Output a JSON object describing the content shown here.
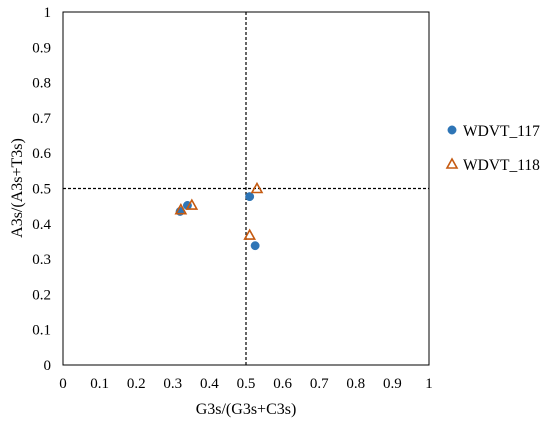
{
  "chart_data": {
    "type": "scatter",
    "title": "",
    "xlabel": "G3s/(G3s+C3s)",
    "ylabel": "A3s/(A3s+T3s)",
    "xlim": [
      0,
      1
    ],
    "ylim": [
      0,
      1
    ],
    "xticks": [
      "0",
      "0.1",
      "0.2",
      "0.3",
      "0.4",
      "0.5",
      "0.6",
      "0.7",
      "0.8",
      "0.9",
      "1"
    ],
    "yticks": [
      "0",
      "0.1",
      "0.2",
      "0.3",
      "0.4",
      "0.5",
      "0.6",
      "0.7",
      "0.8",
      "0.9",
      "1"
    ],
    "grid": false,
    "reference_lines": [
      {
        "axis": "x",
        "value": 0.5,
        "style": "dashed"
      },
      {
        "axis": "y",
        "value": 0.5,
        "style": "dashed"
      }
    ],
    "legend_position": "right",
    "series": [
      {
        "name": "WDVT_117",
        "marker": "circle",
        "color": "#2E75B6",
        "points": [
          {
            "x": 0.32,
            "y": 0.435
          },
          {
            "x": 0.34,
            "y": 0.452
          },
          {
            "x": 0.51,
            "y": 0.477
          },
          {
            "x": 0.525,
            "y": 0.338
          }
        ]
      },
      {
        "name": "WDVT_118",
        "marker": "triangle-open",
        "color": "#C55A11",
        "points": [
          {
            "x": 0.322,
            "y": 0.44
          },
          {
            "x": 0.352,
            "y": 0.453
          },
          {
            "x": 0.51,
            "y": 0.368
          },
          {
            "x": 0.53,
            "y": 0.5
          }
        ]
      }
    ]
  }
}
